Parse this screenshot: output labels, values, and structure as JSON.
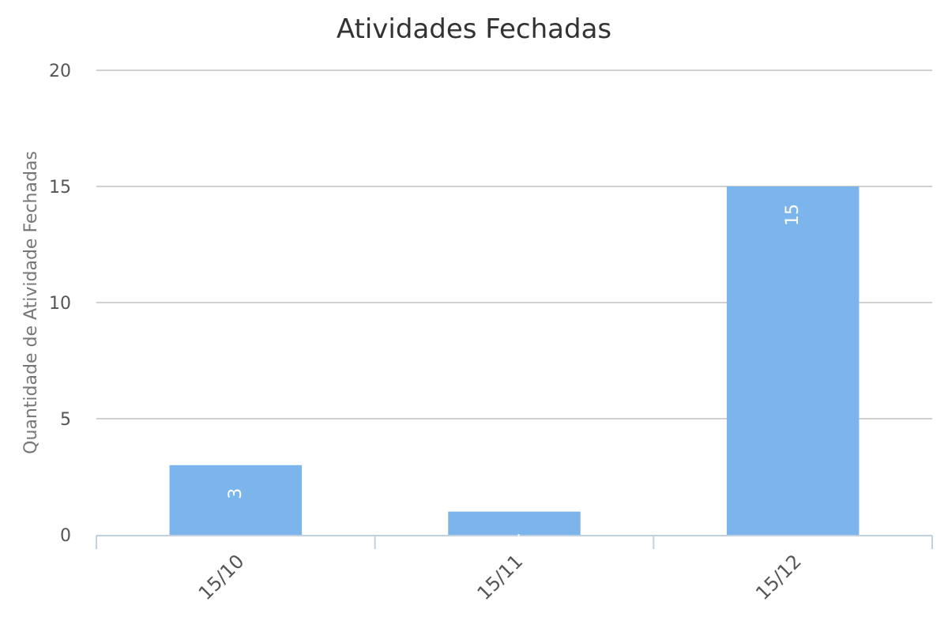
{
  "chart_data": {
    "type": "bar",
    "title": "Atividades Fechadas",
    "xlabel": "",
    "ylabel": "Quantidade de Atividade Fechadas",
    "categories": [
      "15/10",
      "15/11",
      "15/12"
    ],
    "values": [
      3,
      1,
      15
    ],
    "ylim": [
      0,
      20
    ],
    "yticks": [
      0,
      5,
      10,
      15,
      20
    ],
    "grid": true,
    "legend": "none",
    "bar_color": "#7cb5ec",
    "grid_color": "#c0c0c0",
    "axis_color": "#c0d0e0"
  }
}
